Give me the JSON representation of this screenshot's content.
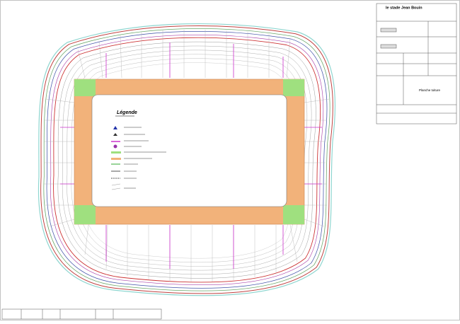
{
  "title_block": {
    "project": "le stade Jean Bouin",
    "sheet": "Planche toiture"
  },
  "legend": {
    "title": "Légende"
  }
}
